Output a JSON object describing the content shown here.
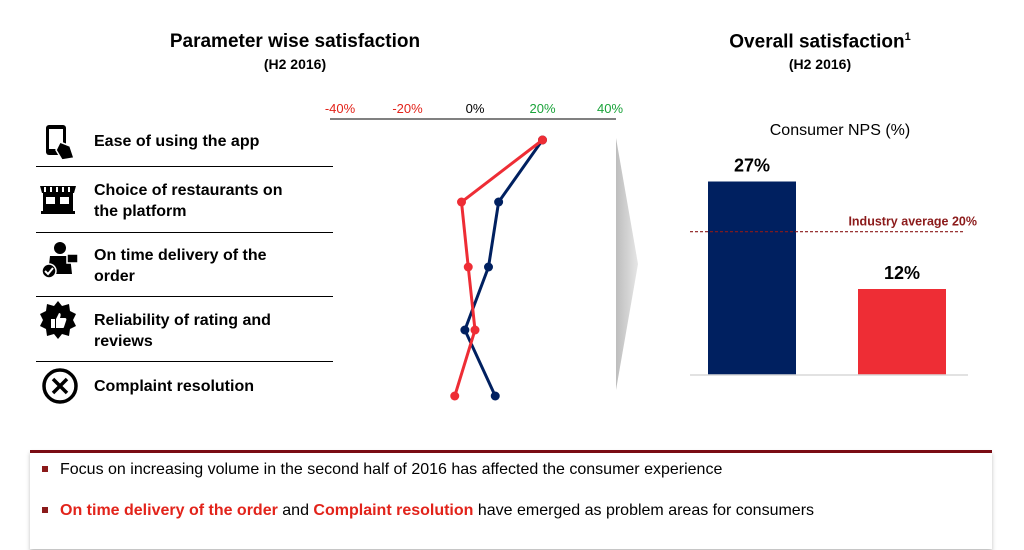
{
  "left_panel": {
    "title": "Parameter wise satisfaction",
    "subtitle": "(H2 2016)",
    "parameters": [
      {
        "label_line1": "Ease of using the app",
        "label_line2": "",
        "icon": "phone-tap-icon"
      },
      {
        "label_line1": "Choice of restaurants on",
        "label_line2": "the platform",
        "icon": "storefront-icon"
      },
      {
        "label_line1": "On time delivery of the",
        "label_line2": "order",
        "icon": "delivery-person-icon"
      },
      {
        "label_line1": "Reliability of rating and",
        "label_line2": "reviews",
        "icon": "badge-thumbs-up-icon"
      },
      {
        "label_line1": "Complaint resolution",
        "label_line2": "",
        "icon": "x-circle-icon"
      }
    ]
  },
  "right_panel": {
    "title": "Overall satisfaction",
    "title_sup": "1",
    "subtitle": "(H2 2016)",
    "chart_label": "Consumer NPS (%)",
    "industry_label": "Industry average 20%"
  },
  "chart_data": [
    {
      "type": "line",
      "x_ticks": [
        "-40%",
        "-20%",
        "0%",
        "20%",
        "40%"
      ],
      "x_tick_colors": [
        "#e2231a",
        "#e2231a",
        "#000000",
        "#1aa33a",
        "#1aa33a"
      ],
      "xlim": [
        -40,
        40
      ],
      "categories": [
        "Ease of using the app",
        "Choice of restaurants on the platform",
        "On time delivery of the order",
        "Reliability of rating and reviews",
        "Complaint resolution"
      ],
      "series": [
        {
          "color": "#002060",
          "values": [
            20,
            7,
            4,
            -3,
            6
          ]
        },
        {
          "color": "#ee2d35",
          "values": [
            20,
            -4,
            -2,
            0,
            -6
          ]
        }
      ]
    },
    {
      "type": "bar",
      "categories": [
        "",
        ""
      ],
      "values": [
        27,
        12
      ],
      "value_labels": [
        "27%",
        "12%"
      ],
      "colors": [
        "#002060",
        "#ee2d35"
      ],
      "reference_line": {
        "value": 20,
        "label": "Industry average 20%",
        "color": "#8b1a1a"
      },
      "ylim": [
        0,
        30
      ]
    }
  ],
  "footer": {
    "bullet1": "Focus on increasing volume in the second half of 2016 has affected the consumer experience",
    "bullet2_part1": "On time delivery of the order",
    "bullet2_part2": " and ",
    "bullet2_part3": "Complaint resolution",
    "bullet2_part4": " have emerged as problem areas for consumers"
  }
}
